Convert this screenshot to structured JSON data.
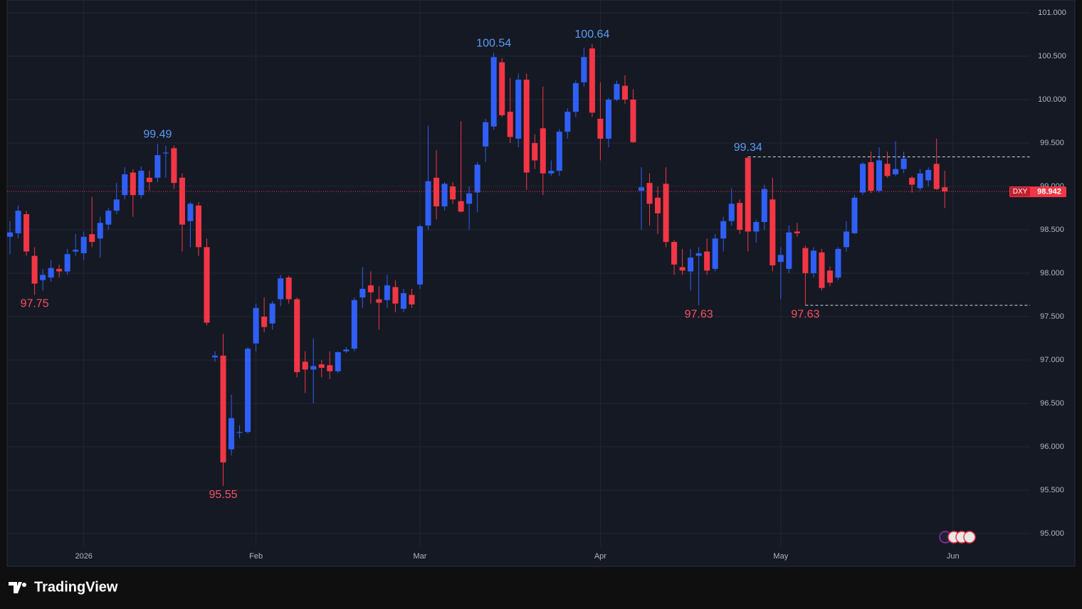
{
  "brand": "TradingView",
  "chart_data": {
    "type": "candlestick",
    "symbol": "DXY",
    "up_color": "#2f5ff5",
    "down_color": "#f23645",
    "open": [
      98.42,
      98.46,
      98.68,
      98.2,
      97.92,
      97.95,
      98.05,
      98.02,
      98.25,
      98.23,
      98.45,
      98.4,
      98.56,
      98.72,
      98.9,
      99.16,
      98.9,
      99.1,
      99.1,
      99.38,
      99.44,
      99.1,
      98.6,
      98.78,
      98.3,
      97.03,
      97.05,
      95.97,
      96.16,
      96.17,
      97.19,
      97.5,
      97.42,
      97.7,
      97.95,
      97.7,
      96.98,
      96.89,
      96.95,
      96.94,
      96.87,
      97.1,
      97.13,
      97.72,
      97.86,
      97.7,
      97.69,
      97.84,
      97.59,
      97.75,
      97.87,
      98.55,
      99.1,
      98.77,
      99.0,
      98.83,
      98.8,
      98.93,
      99.46,
      99.69,
      100.43,
      99.86,
      99.55,
      100.23,
      99.5,
      99.67,
      99.15,
      99.18,
      99.63,
      99.86,
      100.2,
      100.59,
      99.78,
      99.55,
      100.0,
      100.16,
      100.0,
      98.95,
      99.04,
      98.87,
      99.03,
      98.36,
      98.07,
      98.02,
      98.2,
      98.25,
      98.05,
      98.4,
      98.6,
      98.81,
      99.33,
      98.48,
      98.59,
      98.85,
      98.13,
      98.05,
      98.48,
      98.29,
      98.0,
      98.24,
      98.03,
      97.95,
      98.3,
      98.46,
      98.93,
      99.28,
      98.95,
      99.26,
      99.14,
      99.2,
      99.1,
      98.98,
      99.07,
      99.26,
      98.99
    ],
    "high": [
      98.6,
      98.78,
      98.72,
      98.3,
      98.05,
      98.15,
      98.1,
      98.28,
      98.45,
      98.48,
      98.88,
      98.65,
      98.75,
      99.04,
      99.22,
      99.2,
      99.23,
      99.18,
      99.49,
      99.47,
      99.47,
      99.15,
      98.82,
      98.82,
      98.4,
      97.1,
      97.3,
      96.6,
      96.25,
      97.15,
      97.65,
      97.72,
      97.68,
      97.98,
      97.97,
      97.72,
      97.1,
      97.25,
      97.0,
      97.1,
      97.1,
      97.15,
      97.72,
      98.07,
      98.02,
      97.85,
      97.98,
      97.92,
      97.82,
      97.82,
      98.56,
      99.7,
      99.42,
      99.05,
      99.05,
      99.75,
      99.0,
      99.28,
      99.78,
      100.54,
      100.48,
      100.25,
      100.3,
      100.3,
      99.6,
      100.15,
      99.3,
      99.66,
      99.9,
      100.22,
      100.6,
      100.64,
      100.2,
      100.02,
      100.22,
      100.28,
      100.12,
      99.22,
      99.15,
      99.0,
      99.22,
      98.38,
      98.28,
      98.28,
      98.3,
      98.4,
      98.45,
      98.65,
      98.98,
      98.85,
      99.34,
      98.62,
      99.02,
      99.1,
      98.3,
      98.55,
      98.58,
      98.32,
      98.3,
      98.28,
      98.08,
      98.3,
      98.6,
      98.9,
      99.28,
      99.4,
      99.45,
      99.4,
      99.52,
      99.4,
      99.12,
      99.2,
      99.22,
      99.55,
      99.18
    ],
    "low": [
      98.22,
      98.4,
      98.2,
      97.75,
      97.8,
      97.9,
      97.95,
      97.98,
      98.2,
      98.15,
      98.3,
      98.18,
      98.5,
      98.68,
      98.85,
      98.65,
      98.86,
      98.95,
      99.05,
      99.1,
      98.97,
      98.25,
      98.3,
      98.2,
      97.4,
      96.98,
      95.55,
      95.9,
      96.1,
      96.15,
      97.1,
      97.32,
      97.35,
      97.62,
      97.65,
      96.8,
      96.62,
      96.5,
      96.8,
      96.78,
      96.85,
      97.08,
      97.1,
      97.6,
      97.65,
      97.35,
      97.6,
      97.55,
      97.55,
      97.6,
      97.82,
      98.5,
      98.62,
      98.72,
      98.8,
      98.7,
      98.5,
      98.7,
      99.28,
      99.65,
      99.8,
      99.5,
      99.45,
      98.96,
      99.2,
      98.9,
      99.12,
      99.12,
      99.55,
      99.8,
      100.15,
      99.8,
      99.3,
      99.45,
      99.98,
      99.95,
      99.5,
      98.5,
      98.55,
      98.45,
      98.3,
      97.98,
      97.98,
      97.8,
      97.63,
      97.98,
      98.02,
      98.25,
      98.55,
      98.45,
      98.25,
      98.35,
      98.5,
      98.02,
      97.7,
      98.0,
      98.42,
      97.63,
      97.95,
      97.8,
      97.85,
      97.92,
      98.25,
      98.45,
      98.9,
      98.92,
      98.93,
      99.1,
      99.12,
      99.15,
      98.93,
      98.95,
      99.0,
      98.96,
      98.75
    ],
    "close": [
      98.47,
      98.72,
      98.25,
      97.88,
      97.98,
      98.06,
      98.02,
      98.22,
      98.27,
      98.42,
      98.36,
      98.58,
      98.72,
      98.85,
      99.14,
      98.9,
      99.18,
      99.05,
      99.36,
      99.39,
      99.04,
      98.56,
      98.8,
      98.3,
      97.43,
      97.05,
      95.82,
      96.33,
      96.17,
      97.13,
      97.6,
      97.38,
      97.65,
      97.94,
      97.7,
      96.86,
      96.89,
      96.93,
      96.91,
      96.87,
      97.09,
      97.12,
      97.69,
      97.82,
      97.78,
      97.66,
      97.86,
      97.65,
      97.77,
      97.64,
      98.54,
      99.06,
      98.77,
      99.03,
      98.85,
      98.71,
      98.92,
      99.25,
      99.74,
      100.49,
      99.82,
      99.57,
      100.23,
      99.16,
      99.3,
      99.15,
      99.18,
      99.63,
      99.86,
      100.19,
      100.49,
      99.85,
      99.55,
      100.0,
      100.18,
      100.0,
      99.51,
      98.99,
      98.8,
      98.69,
      98.36,
      98.1,
      98.03,
      98.18,
      98.23,
      98.03,
      98.4,
      98.6,
      98.8,
      98.5,
      98.48,
      98.59,
      98.97,
      98.09,
      98.21,
      98.47,
      98.46,
      98.0,
      98.26,
      97.83,
      97.89,
      98.28,
      98.48,
      98.87,
      99.26,
      98.95,
      99.3,
      99.12,
      99.2,
      99.32,
      99.02,
      99.15,
      99.19,
      98.97,
      98.942
    ],
    "annotations": [
      97.75,
      99.49,
      95.55,
      100.54,
      100.64,
      97.63,
      99.34,
      97.63
    ],
    "xlim": [
      -0.35,
      124.4
    ],
    "xticks": [
      {
        "value": 9,
        "label": "2026"
      },
      {
        "value": 30,
        "label": "Feb"
      },
      {
        "value": 50,
        "label": "Mar"
      },
      {
        "value": 72,
        "label": "Apr"
      },
      {
        "value": 94,
        "label": "May"
      },
      {
        "value": 115,
        "label": "Jun"
      }
    ],
    "ylim": [
      94.852,
      101.148
    ],
    "yticks": [
      {
        "value": 95,
        "label": "95.000"
      },
      {
        "value": 95.5,
        "label": "95.500"
      },
      {
        "value": 96,
        "label": "96.000"
      },
      {
        "value": 96.5,
        "label": "96.500"
      },
      {
        "value": 97,
        "label": "97.000"
      },
      {
        "value": 97.5,
        "label": "97.500"
      },
      {
        "value": 98,
        "label": "98.000"
      },
      {
        "value": 98.5,
        "label": "98.500"
      },
      {
        "value": 99,
        "label": "99.000"
      },
      {
        "value": 99.5,
        "label": "99.500"
      },
      {
        "value": 100,
        "label": "100.000"
      },
      {
        "value": 100.5,
        "label": "100.500"
      },
      {
        "value": 101,
        "label": "101.000"
      }
    ],
    "grid": true
  }
}
